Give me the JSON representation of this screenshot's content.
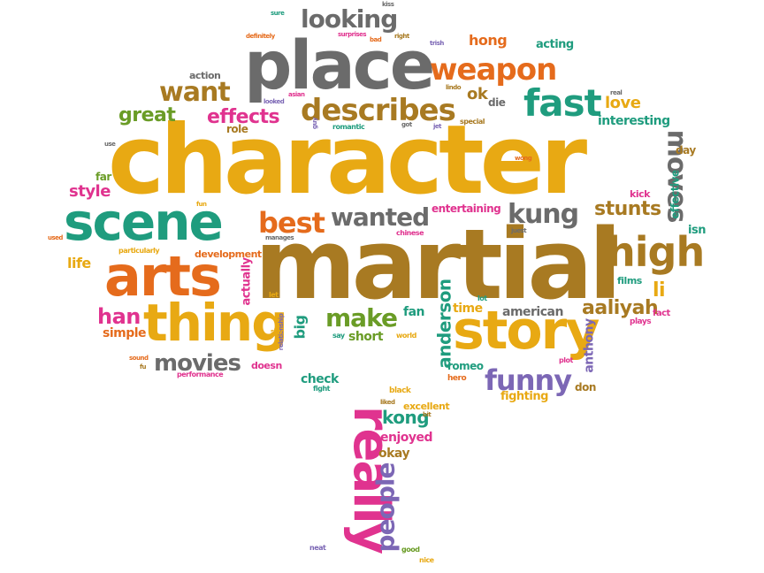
{
  "palette": {
    "gold": "#e8a913",
    "brown": "#a87a22",
    "orange": "#e56b1c",
    "teal": "#1f9c7e",
    "grey": "#6b6b6b",
    "pink": "#e0338f",
    "green": "#6a9c26",
    "purple": "#7c67b5"
  },
  "words": [
    {
      "text": "character",
      "color": "#e8a913"
    },
    {
      "text": "martial",
      "color": "#a87a22"
    },
    {
      "text": "place",
      "color": "#6b6b6b"
    },
    {
      "text": "scene",
      "color": "#1f9c7e"
    },
    {
      "text": "arts",
      "color": "#e56b1c"
    },
    {
      "text": "thing",
      "color": "#e8a913"
    },
    {
      "text": "story",
      "color": "#e8a913"
    },
    {
      "text": "really",
      "color": "#e0338f"
    },
    {
      "text": "weapon",
      "color": "#e56b1c"
    },
    {
      "text": "describes",
      "color": "#a87a22"
    },
    {
      "text": "fast",
      "color": "#1f9c7e"
    },
    {
      "text": "high",
      "color": "#a87a22"
    },
    {
      "text": "looking",
      "color": "#6b6b6b"
    },
    {
      "text": "want",
      "color": "#a87a22"
    },
    {
      "text": "wanted",
      "color": "#6b6b6b"
    },
    {
      "text": "best",
      "color": "#e56b1c"
    },
    {
      "text": "kung",
      "color": "#6b6b6b"
    },
    {
      "text": "funny",
      "color": "#7c67b5"
    },
    {
      "text": "movies",
      "color": "#6b6b6b"
    },
    {
      "text": "make",
      "color": "#6a9c26"
    },
    {
      "text": "moves",
      "color": "#6b6b6b"
    },
    {
      "text": "people",
      "color": "#7c67b5"
    },
    {
      "text": "effects",
      "color": "#e0338f"
    },
    {
      "text": "great",
      "color": "#6a9c26"
    },
    {
      "text": "han",
      "color": "#e0338f"
    },
    {
      "text": "aaliyah",
      "color": "#a87a22"
    },
    {
      "text": "stunts",
      "color": "#a87a22"
    },
    {
      "text": "anderson",
      "color": "#1f9c7e"
    },
    {
      "text": "kong",
      "color": "#1f9c7e"
    },
    {
      "text": "hong",
      "color": "#e56b1c"
    },
    {
      "text": "love",
      "color": "#e8a913"
    },
    {
      "text": "ok",
      "color": "#a87a22"
    },
    {
      "text": "li",
      "color": "#e8a913"
    },
    {
      "text": "style",
      "color": "#e0338f"
    },
    {
      "text": "life",
      "color": "#e8a913"
    },
    {
      "text": "simple",
      "color": "#e56b1c"
    },
    {
      "text": "actually",
      "color": "#e0338f"
    },
    {
      "text": "big",
      "color": "#1f9c7e"
    },
    {
      "text": "short",
      "color": "#6a9c26"
    },
    {
      "text": "american",
      "color": "#6b6b6b"
    },
    {
      "text": "time",
      "color": "#e8a913"
    },
    {
      "text": "fan",
      "color": "#1f9c7e"
    },
    {
      "text": "check",
      "color": "#1f9c7e"
    },
    {
      "text": "romeo",
      "color": "#1f9c7e"
    },
    {
      "text": "enjoyed",
      "color": "#e0338f"
    },
    {
      "text": "okay",
      "color": "#a87a22"
    },
    {
      "text": "fighting",
      "color": "#e8a913"
    },
    {
      "text": "don",
      "color": "#a87a22"
    },
    {
      "text": "anthony",
      "color": "#7c67b5"
    },
    {
      "text": "interesting",
      "color": "#1f9c7e"
    },
    {
      "text": "acting",
      "color": "#1f9c7e"
    },
    {
      "text": "entertaining",
      "color": "#e0338f"
    },
    {
      "text": "effective",
      "color": "#1f9c7e"
    },
    {
      "text": "isn",
      "color": "#1f9c7e"
    },
    {
      "text": "development",
      "color": "#e56b1c"
    },
    {
      "text": "die",
      "color": "#6b6b6b"
    },
    {
      "text": "role",
      "color": "#a87a22"
    },
    {
      "text": "day",
      "color": "#a87a22"
    },
    {
      "text": "far",
      "color": "#6a9c26"
    },
    {
      "text": "kick",
      "color": "#e0338f"
    },
    {
      "text": "excellent",
      "color": "#e8a913"
    },
    {
      "text": "films",
      "color": "#1f9c7e"
    },
    {
      "text": "action",
      "color": "#6b6b6b"
    },
    {
      "text": "doesn",
      "color": "#e0338f"
    },
    {
      "text": "fact",
      "color": "#e0338f"
    },
    {
      "text": "plays",
      "color": "#e0338f"
    },
    {
      "text": "hero",
      "color": "#e56b1c"
    },
    {
      "text": "black",
      "color": "#e8a913"
    },
    {
      "text": "nice",
      "color": "#e8a913"
    },
    {
      "text": "good",
      "color": "#6a9c26"
    },
    {
      "text": "neat",
      "color": "#7c67b5"
    },
    {
      "text": "performance",
      "color": "#e0338f"
    },
    {
      "text": "particularly",
      "color": "#e8a913"
    },
    {
      "text": "fight",
      "color": "#1f9c7e"
    },
    {
      "text": "chinese",
      "color": "#e0338f"
    },
    {
      "text": "romantic",
      "color": "#1f9c7e"
    },
    {
      "text": "special",
      "color": "#a87a22"
    },
    {
      "text": "plot",
      "color": "#e0338f"
    },
    {
      "text": "say",
      "color": "#1f9c7e"
    },
    {
      "text": "world",
      "color": "#e8a913"
    },
    {
      "text": "let",
      "color": "#e8a913"
    },
    {
      "text": "lot",
      "color": "#1f9c7e"
    },
    {
      "text": "manages",
      "color": "#6b6b6b"
    },
    {
      "text": "relationship",
      "color": "#7c67b5"
    },
    {
      "text": "silly",
      "color": "#e8a913"
    },
    {
      "text": "guy",
      "color": "#7c67b5"
    },
    {
      "text": "sound",
      "color": "#e56b1c"
    },
    {
      "text": "fu",
      "color": "#a87a22"
    },
    {
      "text": "used",
      "color": "#e56b1c"
    },
    {
      "text": "fun",
      "color": "#e8a913"
    },
    {
      "text": "use",
      "color": "#6b6b6b"
    },
    {
      "text": "jet",
      "color": "#7c67b5"
    },
    {
      "text": "got",
      "color": "#6b6b6b"
    },
    {
      "text": "wong",
      "color": "#e56b1c"
    },
    {
      "text": "real",
      "color": "#6b6b6b"
    },
    {
      "text": "looked",
      "color": "#7c67b5"
    },
    {
      "text": "asian",
      "color": "#e0338f"
    },
    {
      "text": "definitely",
      "color": "#e56b1c"
    },
    {
      "text": "sure",
      "color": "#1f9c7e"
    },
    {
      "text": "surprises",
      "color": "#e0338f"
    },
    {
      "text": "kiss",
      "color": "#6b6b6b"
    },
    {
      "text": "bad",
      "color": "#e56b1c"
    },
    {
      "text": "right",
      "color": "#a87a22"
    },
    {
      "text": "trish",
      "color": "#7c67b5"
    },
    {
      "text": "lindo",
      "color": "#a87a22"
    },
    {
      "text": "juest",
      "color": "#6b6b6b"
    },
    {
      "text": "liked",
      "color": "#a87a22"
    },
    {
      "text": "bit",
      "color": "#a87a22"
    }
  ]
}
